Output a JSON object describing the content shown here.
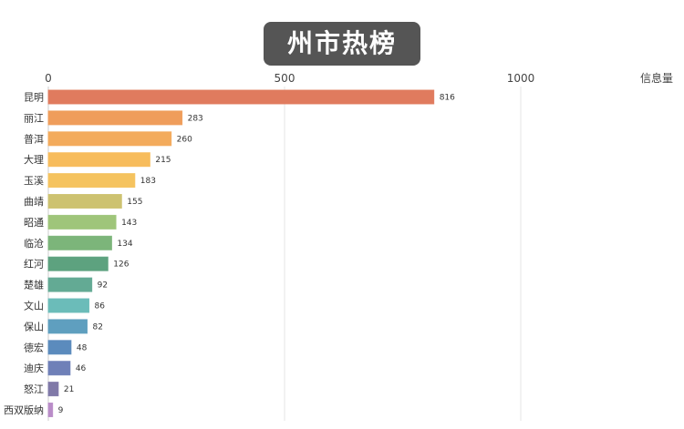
{
  "chart_data": {
    "type": "bar",
    "orientation": "horizontal",
    "title": "州市热榜",
    "unit_label": "信息量",
    "xlim": [
      0,
      1300
    ],
    "xticks": [
      0,
      500,
      1000
    ],
    "grid": true,
    "categories": [
      "昆明",
      "丽江",
      "普洱",
      "大理",
      "玉溪",
      "曲靖",
      "昭通",
      "临沧",
      "红河",
      "楚雄",
      "文山",
      "保山",
      "德宏",
      "迪庆",
      "怒江",
      "西双版纳"
    ],
    "values": [
      816,
      283,
      260,
      215,
      183,
      155,
      143,
      134,
      126,
      92,
      86,
      82,
      48,
      46,
      21,
      9
    ],
    "colors": [
      "#e07b5e",
      "#ef9d5b",
      "#f3ab5c",
      "#f7bc5c",
      "#f5c35f",
      "#cdc270",
      "#9fc57a",
      "#7cb57a",
      "#5da27f",
      "#63aa94",
      "#6bbcb9",
      "#5f9fbf",
      "#5b8bbd",
      "#6f80b8",
      "#8079a8",
      "#b98cc8"
    ]
  }
}
